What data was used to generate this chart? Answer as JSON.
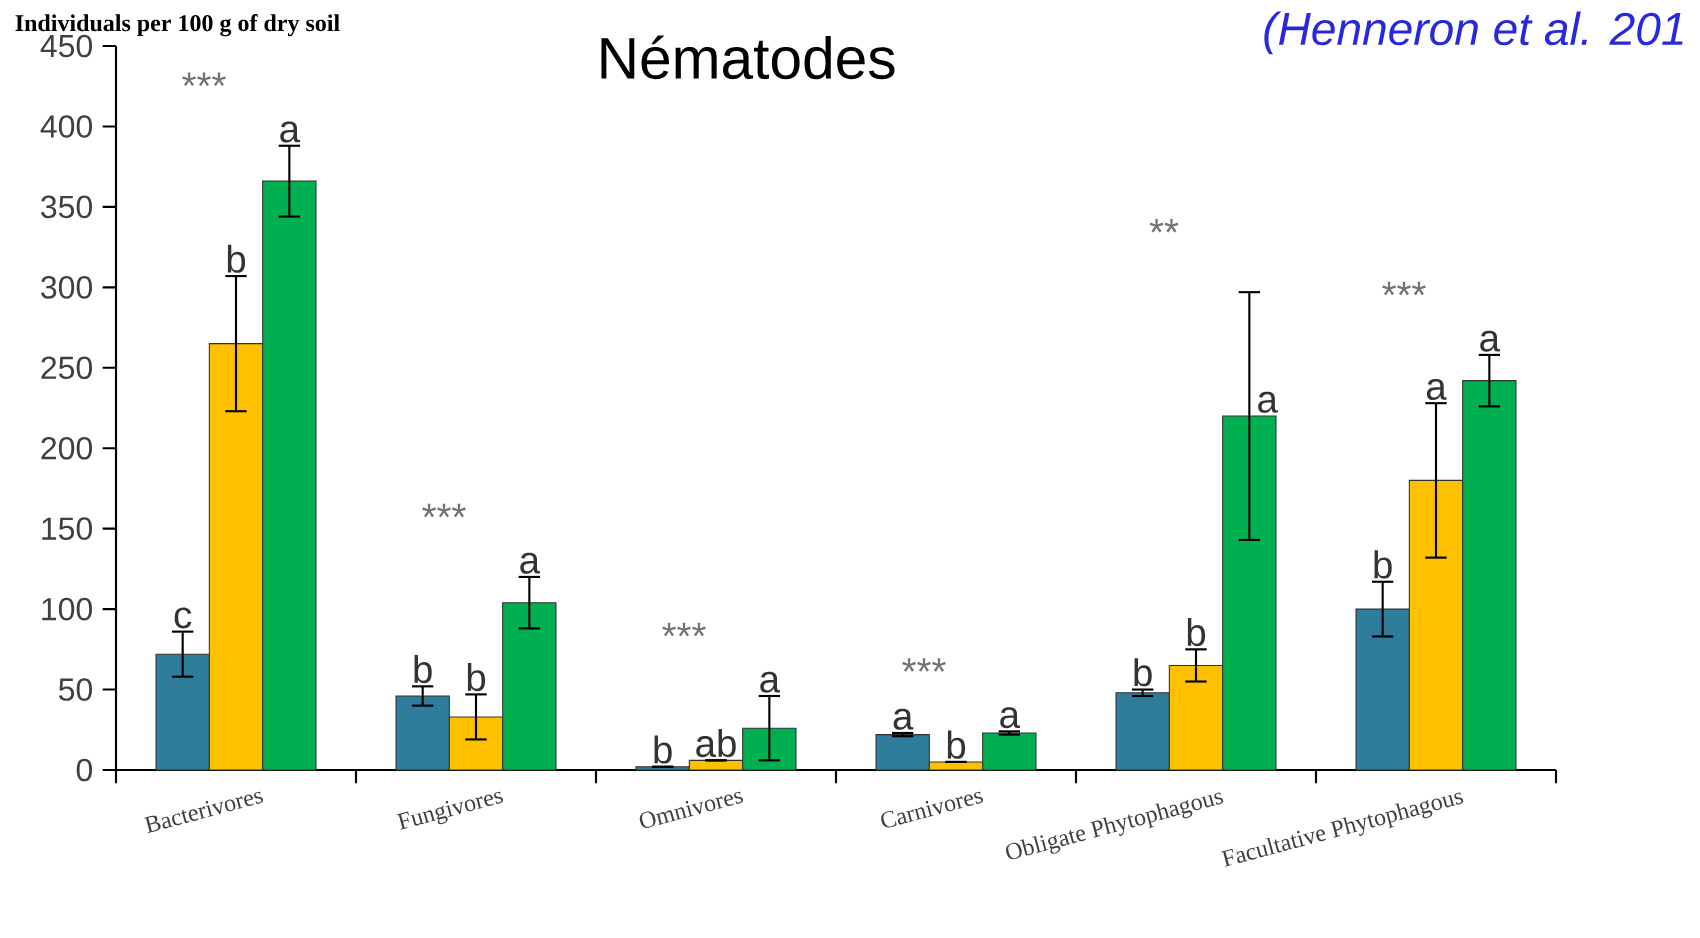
{
  "chart_data": {
    "type": "bar",
    "title": "Nématodes",
    "ylabel": "Individuals per 100 g of dry soil",
    "categories": [
      "Bacterivores",
      "Fungivores",
      "Omnivores",
      "Carnivores",
      "Obligate Phytophagous",
      "Facultative Phytophagous"
    ],
    "series": [
      {
        "color": "#2e7d9a",
        "values": [
          72,
          46,
          2,
          22,
          48,
          100
        ],
        "errors": [
          14,
          6,
          null,
          1,
          2,
          17
        ],
        "value_labels": [
          "c",
          "b",
          "b",
          "a",
          "b",
          "b"
        ]
      },
      {
        "color": "#ffc000",
        "values": [
          265,
          33,
          6,
          5,
          65,
          180
        ],
        "errors": [
          42,
          14,
          null,
          null,
          10,
          48
        ],
        "value_labels": [
          "b",
          "b",
          "ab",
          "b",
          "b",
          "a"
        ]
      },
      {
        "color": "#00b050",
        "values": [
          366,
          104,
          26,
          23,
          220,
          242
        ],
        "errors": [
          22,
          16,
          20,
          1,
          77,
          16
        ],
        "value_labels": [
          "a",
          "a",
          "a",
          "a",
          "a",
          "a"
        ]
      }
    ],
    "annotations": [
      "***",
      "***",
      "***",
      "***",
      "**",
      "***",
      "(Henneron et al. 201"
    ],
    "ylim": [
      0,
      450
    ],
    "yticks": [
      0,
      50,
      100,
      150,
      200,
      250,
      300,
      350,
      400,
      450
    ]
  }
}
